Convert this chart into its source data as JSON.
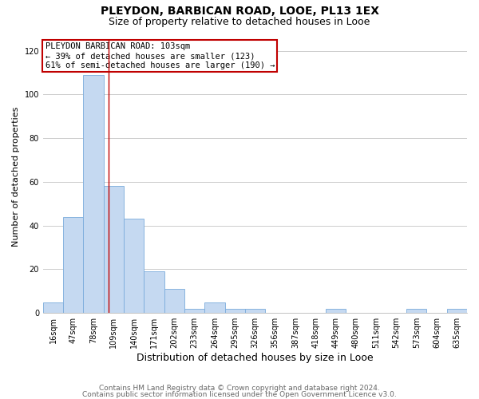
{
  "title": "PLEYDON, BARBICAN ROAD, LOOE, PL13 1EX",
  "subtitle": "Size of property relative to detached houses in Looe",
  "xlabel": "Distribution of detached houses by size in Looe",
  "ylabel": "Number of detached properties",
  "categories": [
    "16sqm",
    "47sqm",
    "78sqm",
    "109sqm",
    "140sqm",
    "171sqm",
    "202sqm",
    "233sqm",
    "264sqm",
    "295sqm",
    "326sqm",
    "356sqm",
    "387sqm",
    "418sqm",
    "449sqm",
    "480sqm",
    "511sqm",
    "542sqm",
    "573sqm",
    "604sqm",
    "635sqm"
  ],
  "values": [
    5,
    44,
    109,
    58,
    43,
    19,
    11,
    2,
    5,
    2,
    2,
    0,
    0,
    0,
    2,
    0,
    0,
    0,
    2,
    0,
    2
  ],
  "bar_color": "#c5d9f1",
  "bar_edge_color": "#7aabdb",
  "vline_x_index": 2.75,
  "vline_color": "#c00000",
  "annotation_text": "PLEYDON BARBICAN ROAD: 103sqm\n← 39% of detached houses are smaller (123)\n61% of semi-detached houses are larger (190) →",
  "annotation_box_color": "#ffffff",
  "annotation_box_edge_color": "#c00000",
  "ylim": [
    0,
    125
  ],
  "yticks": [
    0,
    20,
    40,
    60,
    80,
    100,
    120
  ],
  "footer_line1": "Contains HM Land Registry data © Crown copyright and database right 2024.",
  "footer_line2": "Contains public sector information licensed under the Open Government Licence v3.0.",
  "background_color": "#ffffff",
  "grid_color": "#cccccc",
  "title_fontsize": 10,
  "subtitle_fontsize": 9,
  "xlabel_fontsize": 9,
  "ylabel_fontsize": 8,
  "tick_fontsize": 7,
  "annotation_fontsize": 7.5,
  "footer_fontsize": 6.5
}
